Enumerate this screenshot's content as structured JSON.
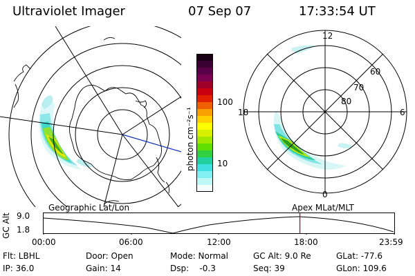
{
  "header": {
    "title": "Ultraviolet Imager",
    "date": "07 Sep 07",
    "time": "17:33:54 UT"
  },
  "colorbar": {
    "unit_label": "photon cm⁻²s⁻¹",
    "ticks": [
      "100",
      "10"
    ],
    "colors": [
      "#1a0016",
      "#3a0030",
      "#5a0048",
      "#7a0050",
      "#a00028",
      "#c80010",
      "#e02000",
      "#f06000",
      "#f8a000",
      "#ffd000",
      "#ffff00",
      "#d8f000",
      "#a0e800",
      "#60e000",
      "#30d040",
      "#20d0a0",
      "#40e0e0",
      "#80f0f0",
      "#c0f8f8",
      "#f4fcfc"
    ]
  },
  "left_map": {
    "caption": "Geographic Lat/Lon"
  },
  "right_map": {
    "caption": "Apex MLat/MLT",
    "mlt_labels": {
      "top": "12",
      "bottom": "0",
      "left": "18",
      "right": "6"
    },
    "lat_labels": [
      "60",
      "70",
      "80"
    ]
  },
  "timeline": {
    "ylabel": "GC Alt",
    "y_ticks": [
      "9.0",
      "1.8"
    ],
    "x_ticks": [
      "00:00",
      "06:00",
      "12:00",
      "18:00",
      "23:59"
    ],
    "current_time_fraction": 0.731
  },
  "info": {
    "flt": "Flt: LBHL",
    "ip": "IP: 36.0",
    "door": "Door: Open",
    "gain": "Gain: 14",
    "mode": "Mode: Normal",
    "dsp": "Dsp:    -0.3",
    "gcalt": "GC Alt: 9.0 Re",
    "seq": "Seq: 39",
    "glat": "GLat: -77.6",
    "glon": "GLon: 109.6"
  }
}
